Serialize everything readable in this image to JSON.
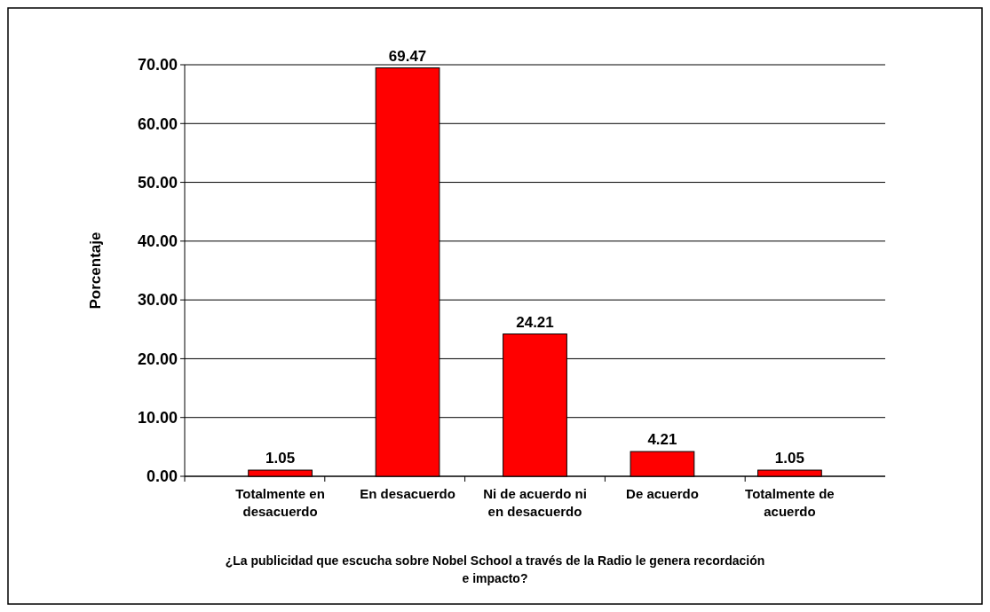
{
  "chart_data": {
    "type": "bar",
    "categories": [
      "Totalmente en desacuerdo",
      "En desacuerdo",
      "Ni de acuerdo ni en desacuerdo",
      "De acuerdo",
      "Totalmente de acuerdo"
    ],
    "values": [
      1.05,
      69.47,
      24.21,
      4.21,
      1.05
    ],
    "color": "#ff0000",
    "ylabel": "Porcentaje",
    "xlabel": "¿La publicidad que escucha sobre Nobel School  a través de la Radio le genera recordación e impacto?",
    "ylim": [
      0,
      70
    ],
    "yticks": [
      {
        "value": 0,
        "label": "0.00"
      },
      {
        "value": 10,
        "label": "10.00"
      },
      {
        "value": 20,
        "label": "20.00"
      },
      {
        "value": 30,
        "label": "30.00"
      },
      {
        "value": 40,
        "label": "40.00"
      },
      {
        "value": 50,
        "label": "50.00"
      },
      {
        "value": 60,
        "label": "60.00"
      },
      {
        "value": 70,
        "label": "70.00"
      }
    ],
    "grid": "y",
    "data_labels": true
  }
}
